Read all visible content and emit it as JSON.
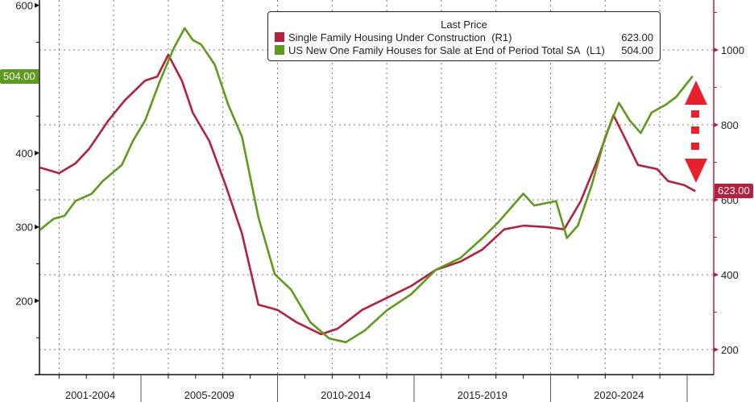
{
  "chart_data": {
    "type": "line",
    "title": "",
    "legend": {
      "title": "Last Price",
      "position": "top-right",
      "entries": [
        {
          "name": "Single Family Housing Under Construction",
          "axis": "(R1)",
          "last": "623.00"
        },
        {
          "name": "US New One Family Houses for Sale at End of Period Total SA",
          "axis": "(L1)",
          "last": "504.00"
        }
      ]
    },
    "x_categories": [
      "2001-2004",
      "2005-2009",
      "2010-2014",
      "2015-2019",
      "2020-2024"
    ],
    "left_axis": {
      "ylim": [
        100,
        610
      ],
      "ticks": [
        "600",
        "400",
        "300",
        "200"
      ],
      "minor": [
        550,
        500,
        450,
        350,
        250,
        150,
        100
      ]
    },
    "right_axis": {
      "ylim": [
        140,
        1130
      ],
      "ticks": [
        "1000",
        "800",
        "600",
        "400",
        "200"
      ],
      "minor": [
        1100,
        900,
        700,
        500,
        300
      ]
    },
    "series": [
      {
        "name": "Single Family Housing Under Construction",
        "axis": "right",
        "color": "#b5203f",
        "x": [
          2001.3,
          2002.0,
          2002.6,
          2003.1,
          2003.8,
          2004.4,
          2005.15,
          2005.6,
          2006.0,
          2006.5,
          2006.9,
          2007.5,
          2008.1,
          2008.7,
          2009.3,
          2010.0,
          2010.7,
          2011.6,
          2012.2,
          2013.1,
          2014.0,
          2014.9,
          2015.8,
          2016.7,
          2017.5,
          2018.3,
          2019.0,
          2019.9,
          2020.5,
          2021.1,
          2021.7,
          2022.3,
          2022.7,
          2023.2,
          2023.9,
          2024.3,
          2024.9,
          2025.3
        ],
        "values": [
          686,
          671,
          697,
          736,
          811,
          865,
          918,
          929,
          987,
          918,
          832,
          757,
          639,
          510,
          320,
          306,
          273,
          241,
          256,
          306,
          338,
          370,
          413,
          435,
          467,
          521,
          531,
          527,
          521,
          596,
          703,
          826,
          768,
          693,
          682,
          650,
          639,
          623
        ]
      },
      {
        "name": "US New One Family Houses for Sale at End of Period Total SA",
        "axis": "left",
        "color": "#5e9a1c",
        "x": [
          2001.3,
          2001.8,
          2002.2,
          2002.6,
          2003.2,
          2003.6,
          2004.3,
          2004.7,
          2005.15,
          2005.7,
          2006.2,
          2006.6,
          2006.9,
          2007.2,
          2007.7,
          2008.2,
          2008.7,
          2009.3,
          2009.9,
          2010.5,
          2011.2,
          2011.9,
          2012.5,
          2013.2,
          2014.0,
          2014.9,
          2015.8,
          2016.7,
          2017.5,
          2018.1,
          2019.0,
          2019.4,
          2020.2,
          2020.6,
          2021.0,
          2021.5,
          2022.0,
          2022.5,
          2022.9,
          2023.3,
          2023.7,
          2024.2,
          2024.6,
          2025.2
        ],
        "values": [
          296,
          311,
          315,
          335,
          345,
          362,
          384,
          416,
          444,
          498,
          542,
          569,
          553,
          547,
          520,
          465,
          422,
          313,
          236,
          215,
          171,
          149,
          144,
          160,
          187,
          209,
          242,
          258,
          285,
          307,
          345,
          329,
          335,
          285,
          302,
          356,
          422,
          468,
          444,
          427,
          455,
          465,
          476,
          504
        ]
      }
    ],
    "last_value_labels": {
      "left": "504.00",
      "right": "623.00"
    },
    "annotation": "red up/down dashed arrow"
  }
}
